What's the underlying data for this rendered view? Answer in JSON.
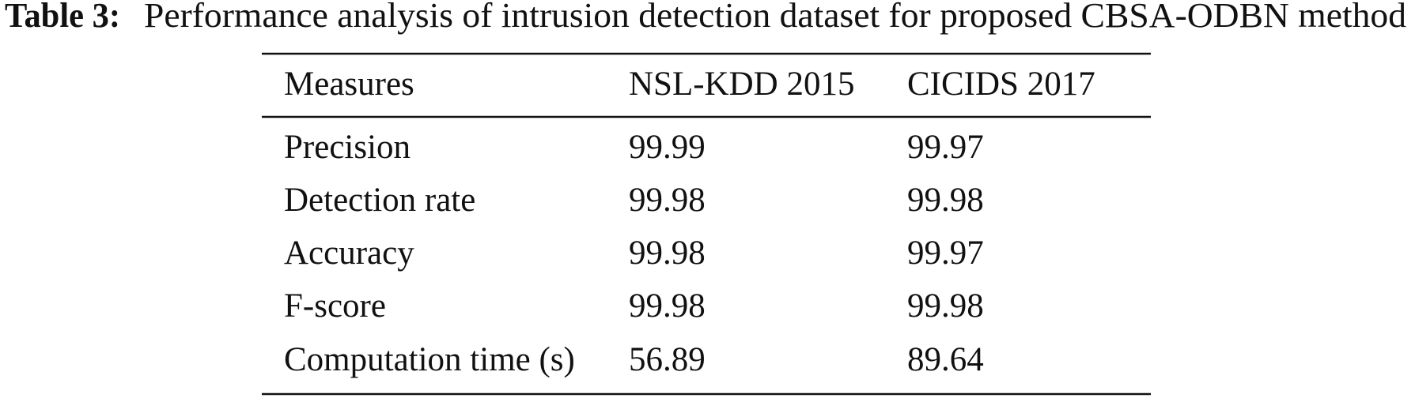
{
  "caption": {
    "label": "Table 3:",
    "text": "Performance analysis of intrusion detection dataset for proposed CBSA-ODBN method"
  },
  "table": {
    "header": [
      "Measures",
      "NSL-KDD 2015",
      "CICIDS 2017"
    ],
    "rows": [
      [
        "Precision",
        99.99,
        99.97
      ],
      [
        "Detection rate",
        99.98,
        99.98
      ],
      [
        "Accuracy",
        99.98,
        99.97
      ],
      [
        "F-score",
        99.98,
        99.98
      ],
      [
        "Computation time (s)",
        56.89,
        89.64
      ]
    ]
  }
}
